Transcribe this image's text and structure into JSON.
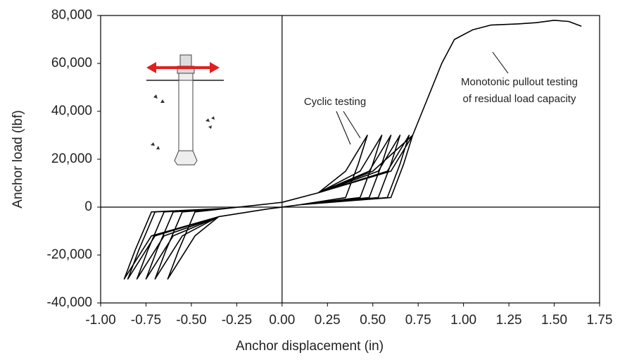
{
  "chart_data": {
    "type": "line",
    "xlabel": "Anchor displacement (in)",
    "ylabel": "Anchor load (lbf)",
    "color": "#000000",
    "annotations": [
      "Cyclic testing",
      "Monotonic pullout testing",
      "of residual load capacity"
    ],
    "xlim": [
      -1,
      1.75
    ],
    "ylim": [
      -40000,
      80000
    ],
    "xticks": [
      {
        "value": -1,
        "label": "-1.00"
      },
      -0.75,
      {
        "value": -0.5,
        "label": "-0.50"
      },
      -0.25,
      {
        "value": 0,
        "label": "0.00"
      },
      0.25,
      {
        "value": 0.5,
        "label": "0.50"
      },
      0.75,
      {
        "value": 1,
        "label": "1.00"
      },
      1.25,
      {
        "value": 1.5,
        "label": "1.50"
      },
      1.75
    ],
    "yticks": [
      {
        "value": -40000,
        "label": "-40,000"
      },
      {
        "value": -20000,
        "label": "-20,000"
      },
      0,
      {
        "value": 20000,
        "label": "20,000"
      },
      {
        "value": 40000,
        "label": "40,000"
      },
      {
        "value": 60000,
        "label": "60,000"
      },
      {
        "value": 80000,
        "label": "80,000"
      }
    ],
    "x": [
      0,
      0.2,
      0.35,
      0.47,
      0.42,
      0.35,
      0.1,
      -0.1,
      -0.35,
      -0.48,
      -0.63,
      -0.57,
      -0.48,
      -0.3,
      0,
      0.2,
      0.43,
      0.55,
      0.5,
      0.43,
      0.1,
      -0.1,
      -0.35,
      -0.55,
      -0.7,
      -0.64,
      -0.55,
      -0.3,
      0,
      0.2,
      0.48,
      0.6,
      0.55,
      0.48,
      0.1,
      -0.1,
      -0.35,
      -0.6,
      -0.75,
      -0.69,
      -0.6,
      -0.3,
      0,
      0.2,
      0.53,
      0.65,
      0.6,
      0.53,
      0.1,
      -0.1,
      -0.35,
      -0.65,
      -0.8,
      -0.74,
      -0.65,
      -0.3,
      0,
      0.2,
      0.58,
      0.7,
      0.65,
      0.58,
      0.1,
      -0.1,
      -0.35,
      -0.7,
      -0.85,
      -0.79,
      -0.7,
      -0.3,
      0,
      0.2,
      0.6,
      0.72,
      0.67,
      0.6,
      0.1,
      -0.1,
      -0.35,
      -0.72,
      -0.87,
      -0.81,
      -0.72,
      -0.3,
      0,
      0.2,
      0.5,
      0.72,
      0.8,
      0.88,
      0.95,
      1.05,
      1.15,
      1.3,
      1.4,
      1.5,
      1.58,
      1.65
    ],
    "values": [
      2000,
      6000,
      15000,
      30000,
      18000,
      4000,
      1000,
      -1000,
      -4000,
      -12000,
      -30000,
      -18000,
      -2000,
      -500,
      2000,
      6000,
      15000,
      30000,
      18000,
      4000,
      1000,
      -1000,
      -4000,
      -12000,
      -30000,
      -18000,
      -2000,
      -500,
      2000,
      6000,
      15000,
      30000,
      18000,
      4000,
      1000,
      -1000,
      -4000,
      -12000,
      -30000,
      -18000,
      -2000,
      -500,
      2000,
      6000,
      15000,
      30000,
      18000,
      4000,
      1000,
      -1000,
      -4000,
      -12000,
      -30000,
      -18000,
      -2000,
      -500,
      2000,
      6000,
      15000,
      30000,
      18000,
      4000,
      1000,
      -1000,
      -4000,
      -12000,
      -30000,
      -18000,
      -2000,
      -500,
      2000,
      6000,
      15000,
      30000,
      18000,
      4000,
      1000,
      -1000,
      -4000,
      -12000,
      -30000,
      -18000,
      -2000,
      -500,
      2000,
      6000,
      15000,
      30000,
      45000,
      60000,
      70000,
      74000,
      76000,
      76500,
      77000,
      78000,
      77500,
      75500
    ]
  }
}
